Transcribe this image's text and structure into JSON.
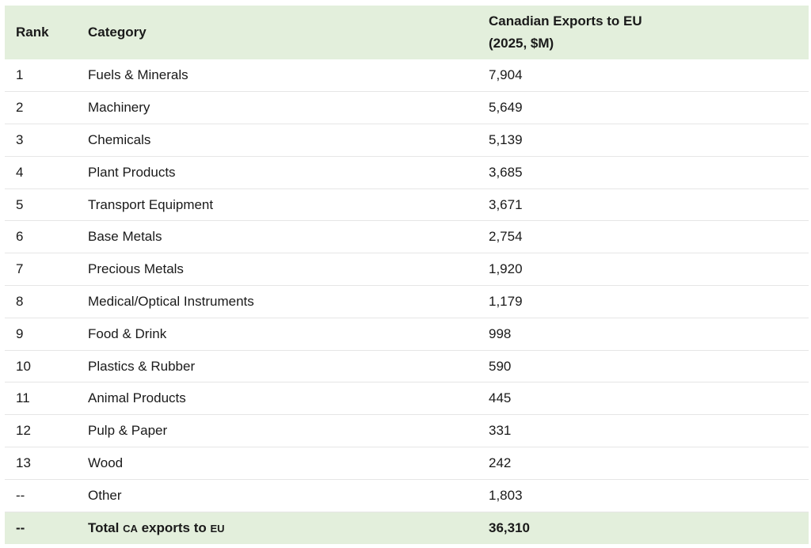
{
  "table": {
    "headers": {
      "rank": "Rank",
      "category": "Category",
      "value_line1": "Canadian Exports to EU",
      "value_line2": "(2025, $M)"
    },
    "rows": [
      {
        "rank": "1",
        "category": "Fuels & Minerals",
        "value": "7,904"
      },
      {
        "rank": "2",
        "category": "Machinery",
        "value": "5,649"
      },
      {
        "rank": "3",
        "category": "Chemicals",
        "value": "5,139"
      },
      {
        "rank": "4",
        "category": "Plant Products",
        "value": "3,685"
      },
      {
        "rank": "5",
        "category": "Transport Equipment",
        "value": "3,671"
      },
      {
        "rank": "6",
        "category": "Base Metals",
        "value": "2,754"
      },
      {
        "rank": "7",
        "category": "Precious Metals",
        "value": "1,920"
      },
      {
        "rank": "8",
        "category": "Medical/Optical Instruments",
        "value": "1,179"
      },
      {
        "rank": "9",
        "category": "Food & Drink",
        "value": "998"
      },
      {
        "rank": "10",
        "category": "Plastics & Rubber",
        "value": "590"
      },
      {
        "rank": "11",
        "category": "Animal Products",
        "value": "445"
      },
      {
        "rank": "12",
        "category": "Pulp & Paper",
        "value": "331"
      },
      {
        "rank": "13",
        "category": "Wood",
        "value": "242"
      },
      {
        "rank": "--",
        "category": "Other",
        "value": "1,803"
      }
    ],
    "total": {
      "rank": "--",
      "label_prefix": "Total ",
      "label_ca": "CA",
      "label_mid": " exports to ",
      "label_eu": "EU",
      "value": "36,310"
    }
  },
  "colors": {
    "header_bg": "#e3efdc",
    "row_border": "#e6e6e6",
    "text": "#1a1a1a"
  }
}
